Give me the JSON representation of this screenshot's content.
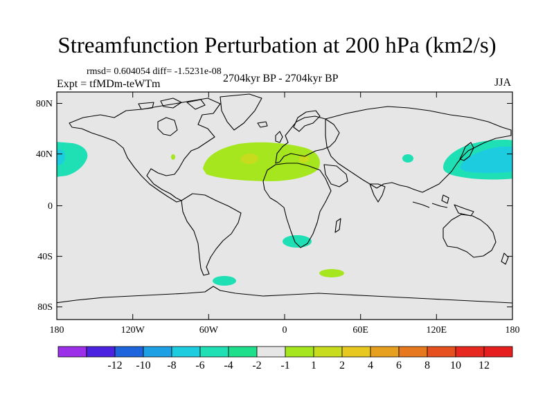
{
  "title": "Streamfunction Perturbation at 200 hPa (km2/s)",
  "stats": "rmsd= 0.604054 diff= -1.5231e-08",
  "expt": "Expt = tfMDm-teWTm",
  "period": "2704kyr BP - 2704kyr BP",
  "season": "JJA",
  "lat_labels": [
    "80N",
    "40N",
    "0",
    "40S",
    "80S"
  ],
  "lon_labels": [
    "180",
    "120W",
    "60W",
    "0",
    "60E",
    "120E",
    "180"
  ],
  "colorbar": {
    "colors": [
      "#9b30e8",
      "#4a22e0",
      "#1e64dc",
      "#1ea0e4",
      "#1ecce0",
      "#1ee0b4",
      "#1ee08c",
      "#e6e6e6",
      "#a6e61e",
      "#c8dc1e",
      "#e6c81e",
      "#e6a01e",
      "#e6781e",
      "#e6501e",
      "#e6281e",
      "#e61e1e"
    ],
    "labels": [
      "-12",
      "-10",
      "-8",
      "-6",
      "-4",
      "-2",
      "-1",
      "1",
      "2",
      "4",
      "6",
      "8",
      "10",
      "12"
    ]
  },
  "chart_data": {
    "type": "map-contour",
    "title": "Streamfunction Perturbation at 200 hPa (km2/s)",
    "variable": "streamfunction perturbation",
    "level_hPa": 200,
    "units": "km2/s",
    "season": "JJA",
    "contour_levels": [
      -12,
      -10,
      -8,
      -6,
      -4,
      -2,
      -1,
      1,
      2,
      4,
      6,
      8,
      10,
      12
    ],
    "lon_range": [
      -180,
      180
    ],
    "lat_range": [
      -90,
      90
    ],
    "features": [
      {
        "region": "North Atlantic / North Africa / Mediterranean",
        "sign": "positive",
        "range": "1 to 2",
        "peak": "2 to 4",
        "center_lon": -10,
        "center_lat": 30
      },
      {
        "region": "Western North Pacific / East Asia",
        "sign": "negative",
        "range": "-2 to -4",
        "center_lon": 160,
        "center_lat": 35
      },
      {
        "region": "Eastern North Pacific",
        "sign": "negative",
        "range": "-1 to -4",
        "center_lon": -165,
        "center_lat": 37
      },
      {
        "region": "South Atlantic",
        "sign": "negative",
        "range": "-1 to -2",
        "center_lon": 5,
        "center_lat": -35
      },
      {
        "region": "South Indian Ocean",
        "sign": "positive",
        "range": "1 to 2",
        "center_lon": 40,
        "center_lat": -54
      },
      {
        "region": "Drake Passage",
        "sign": "negative",
        "range": "-1 to -2",
        "center_lon": -50,
        "center_lat": -62
      },
      {
        "region": "Central Asia",
        "sign": "negative",
        "range": "-1 to -2",
        "center_lon": 100,
        "center_lat": 35
      },
      {
        "region": "Eastern North America",
        "sign": "positive",
        "range": "1 to 2",
        "center_lon": -90,
        "center_lat": 36
      }
    ]
  }
}
